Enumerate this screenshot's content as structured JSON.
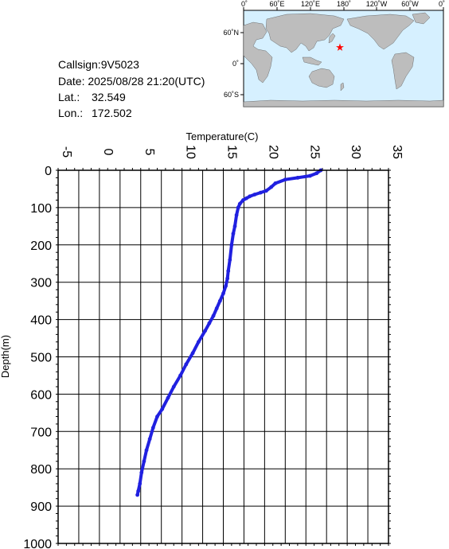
{
  "station_info": {
    "callsign": "Callsign:9V5023",
    "date": "Date:  2025/08/28 21:20(UTC)",
    "lat_label": "Lat.:",
    "lat_value": "32.549",
    "lon_label": "Lon.:",
    "lon_value": "172.502"
  },
  "map": {
    "lon_labels": [
      "0˚",
      "60˚E",
      "120˚E",
      "180˚",
      "120˚W",
      "60˚W",
      "0˚"
    ],
    "lat_labels": [
      "60˚N",
      "0˚",
      "60˚S"
    ],
    "ocean_color": "#d6f0ff",
    "land_color": "#bdbdbd",
    "marker": "red-star",
    "marker_color": "#ff0000"
  },
  "chart_data": {
    "type": "line",
    "xlabel": "Temperature(C)",
    "ylabel": "Depth(m)",
    "xlim": [
      -5,
      35
    ],
    "ylim": [
      0,
      1000
    ],
    "y_inverted": true,
    "x_tick_labels": [
      "-5",
      "0",
      "5",
      "10",
      "15",
      "20",
      "25",
      "30",
      "35"
    ],
    "y_tick_labels": [
      "0",
      "100",
      "200",
      "300",
      "400",
      "500",
      "600",
      "700",
      "800",
      "900",
      "1000"
    ],
    "grid": true,
    "series": [
      {
        "color": "#2020e0",
        "x": [
          26.8,
          26.3,
          25.5,
          24.0,
          22.5,
          21.3,
          20.8,
          20.2,
          19.5,
          18.8,
          18.2,
          17.8,
          17.4,
          17.0,
          16.8,
          16.6,
          16.4,
          16.2,
          16.0,
          15.8,
          15.6,
          15.5,
          15.3,
          15.0,
          14.6,
          14.2,
          13.8,
          13.3,
          12.8,
          12.0,
          11.3,
          10.5,
          9.8,
          9.0,
          8.3,
          7.6,
          7.0,
          6.5,
          6.1,
          5.7,
          5.4,
          5.1,
          4.9,
          4.7,
          4.6
        ],
        "y": [
          0,
          8,
          15,
          20,
          25,
          35,
          45,
          55,
          60,
          65,
          70,
          75,
          80,
          90,
          100,
          120,
          150,
          170,
          200,
          240,
          270,
          290,
          310,
          330,
          350,
          370,
          390,
          410,
          430,
          460,
          490,
          520,
          550,
          580,
          610,
          640,
          660,
          690,
          720,
          750,
          780,
          810,
          840,
          860,
          870
        ]
      }
    ]
  }
}
